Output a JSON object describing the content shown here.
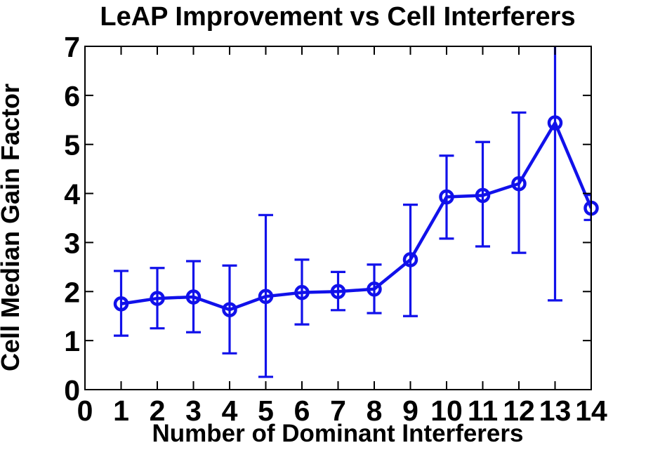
{
  "figure": {
    "background": "#ffffff",
    "text_color": "#000000",
    "axis_color": "#000000"
  },
  "chart_data": {
    "type": "line",
    "subtype": "errorbar",
    "title": "LeAP Improvement vs Cell Interferers",
    "xlabel": "Number of Dominant Interferers",
    "ylabel": "Cell Median Gain Factor",
    "xlim": [
      0,
      14
    ],
    "ylim": [
      0,
      7
    ],
    "x_ticks": [
      0,
      1,
      2,
      3,
      4,
      5,
      6,
      7,
      8,
      9,
      10,
      11,
      12,
      13,
      14
    ],
    "y_ticks": [
      0,
      1,
      2,
      3,
      4,
      5,
      6,
      7
    ],
    "grid": false,
    "legend_position": "none",
    "series": [
      {
        "name": "cell-median-gain-factor",
        "color": "#1111ea",
        "marker": "open-circle",
        "x": [
          1,
          2,
          3,
          4,
          5,
          6,
          7,
          8,
          9,
          10,
          11,
          12,
          13,
          14
        ],
        "y": [
          1.75,
          1.86,
          1.89,
          1.63,
          1.9,
          1.98,
          2.0,
          2.05,
          2.65,
          3.93,
          3.96,
          4.2,
          5.44,
          3.7
        ],
        "err_upper": [
          2.42,
          2.48,
          2.62,
          2.53,
          3.56,
          2.65,
          2.4,
          2.55,
          3.77,
          4.77,
          5.05,
          5.65,
          7.0,
          3.97
        ],
        "err_lower": [
          1.1,
          1.25,
          1.17,
          0.74,
          0.26,
          1.33,
          1.62,
          1.56,
          1.5,
          3.08,
          2.92,
          2.79,
          1.82,
          3.46
        ],
        "err_upper_clipped": [
          false,
          false,
          false,
          false,
          false,
          false,
          false,
          false,
          false,
          false,
          false,
          false,
          true,
          false
        ]
      }
    ]
  }
}
